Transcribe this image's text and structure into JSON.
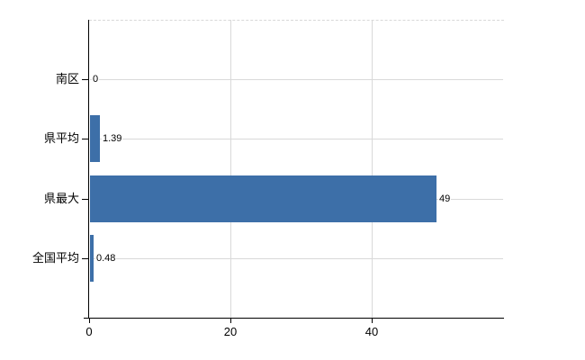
{
  "chart_data": {
    "type": "bar",
    "orientation": "horizontal",
    "title": "",
    "xlabel": "",
    "ylabel": "",
    "categories": [
      "南区",
      "県平均",
      "県最大",
      "全国平均"
    ],
    "values": [
      0,
      1.39,
      49,
      0.48
    ],
    "value_labels": [
      "0",
      "1.39",
      "49",
      "0.48"
    ],
    "x_ticks": [
      0,
      20,
      40
    ],
    "x_tick_labels": [
      "0",
      "20",
      "40"
    ],
    "xlim": [
      0,
      58.7
    ],
    "grid": true,
    "legend": false,
    "colors": {
      "bar": "#3d6fa8",
      "grid": "#d9d9d9",
      "top_border": "#d9d9d9",
      "axis": "#000000",
      "text": "#000000",
      "background": "#ffffff"
    }
  }
}
